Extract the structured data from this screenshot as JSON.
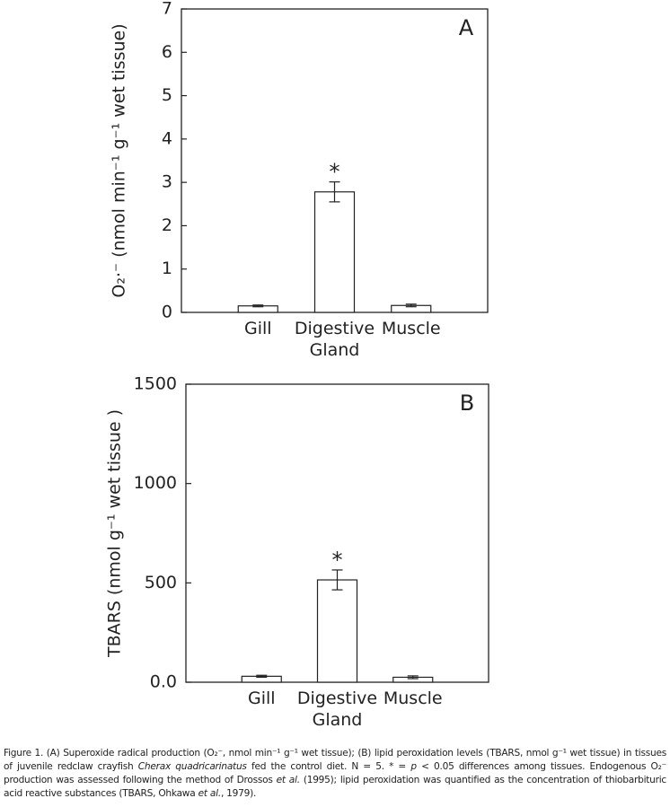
{
  "chart_data": [
    {
      "type": "bar",
      "panel_label": "A",
      "ylabel": "O₂·⁻ (nmol min⁻¹ g⁻¹ wet tissue)",
      "categories": [
        "Gill",
        "Digestive Gland",
        "Muscle"
      ],
      "values": [
        0.15,
        2.78,
        0.16
      ],
      "errors": [
        0.02,
        0.23,
        0.03
      ],
      "significance": [
        null,
        "*",
        null
      ],
      "color": "#ffffff",
      "ylim": [
        0,
        7
      ],
      "yticks": [
        0,
        1,
        2,
        3,
        4,
        5,
        6,
        7
      ]
    },
    {
      "type": "bar",
      "panel_label": "B",
      "ylabel": "TBARS (nmol g⁻¹ wet tissue )",
      "categories": [
        "Gill",
        "Digestive Gland",
        "Muscle"
      ],
      "values": [
        30,
        515,
        25
      ],
      "errors": [
        5,
        50,
        7
      ],
      "significance": [
        null,
        "*",
        null
      ],
      "color": "#ffffff",
      "ylim": [
        0,
        1500
      ],
      "yticks": [
        {
          "value": 0,
          "label": "0.0"
        },
        500,
        1000,
        1500
      ]
    }
  ],
  "caption": [
    {
      "text": "Figure 1. (A) Superoxide radical production (O₂⁻, nmol min⁻¹ g⁻¹ wet tissue); (B) lipid peroxidation levels (TBARS, nmol g⁻¹ wet tissue) in tissues of juvenile redclaw crayfish ",
      "italic": false
    },
    {
      "text": "Cherax quadricarinatus",
      "italic": true
    },
    {
      "text": " fed the control diet. N = 5. * = ",
      "italic": false
    },
    {
      "text": "p",
      "italic": true
    },
    {
      "text": " < 0.05 differences among tissues. Endogenous O₂⁻ production was assessed following the method of Drossos ",
      "italic": false
    },
    {
      "text": "et al.",
      "italic": true
    },
    {
      "text": " (1995); lipid peroxidation was quantified as the concentration of thiobarbituric acid reactive substances (TBARS, Ohkawa ",
      "italic": false
    },
    {
      "text": "et al.",
      "italic": true
    },
    {
      "text": ", 1979).",
      "italic": false
    }
  ]
}
